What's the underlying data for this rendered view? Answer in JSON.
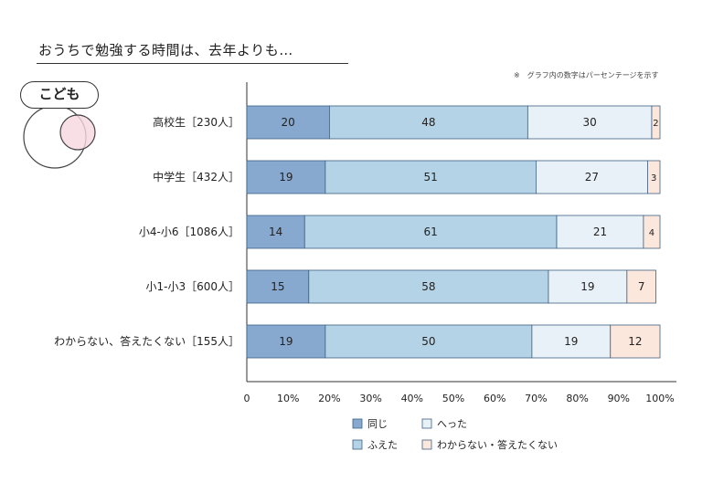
{
  "title": "おうちで勉強する時間は、去年よりも…",
  "note": "※　グラフ内の数字はパーセンテージを示す",
  "badge": "こども",
  "colors": {
    "same": "#87a9cf",
    "increased": "#b4d3e6",
    "decreased": "#e9f1f8",
    "unknown": "#fbe7dc",
    "venn_pink": "#f6d7e0",
    "axis": "#333333",
    "bar_stroke": "#3e5f82"
  },
  "chart_data": {
    "type": "bar",
    "orientation": "horizontal",
    "stacked": true,
    "categories": [
      "高校生［230人］",
      "中学生［432人］",
      "小4-小6［1086人］",
      "小1-小3［600人］",
      "わからない、答えたくない［155人］"
    ],
    "series": [
      {
        "name": "同じ",
        "values": [
          20,
          19,
          14,
          15,
          19
        ],
        "color": "#87a9cf"
      },
      {
        "name": "ふえた",
        "values": [
          48,
          51,
          61,
          58,
          50
        ],
        "color": "#b4d3e6"
      },
      {
        "name": "へった",
        "values": [
          30,
          27,
          21,
          19,
          19
        ],
        "color": "#e9f1f8"
      },
      {
        "name": "わからない・答えたくない",
        "values": [
          2,
          3,
          4,
          7,
          12
        ],
        "color": "#fbe7dc"
      }
    ],
    "xlim": [
      0,
      100
    ],
    "xticks": [
      "0",
      "10%",
      "20%",
      "30%",
      "40%",
      "50%",
      "60%",
      "70%",
      "80%",
      "90%",
      "100%"
    ],
    "grid": false,
    "legend_position": "bottom"
  }
}
